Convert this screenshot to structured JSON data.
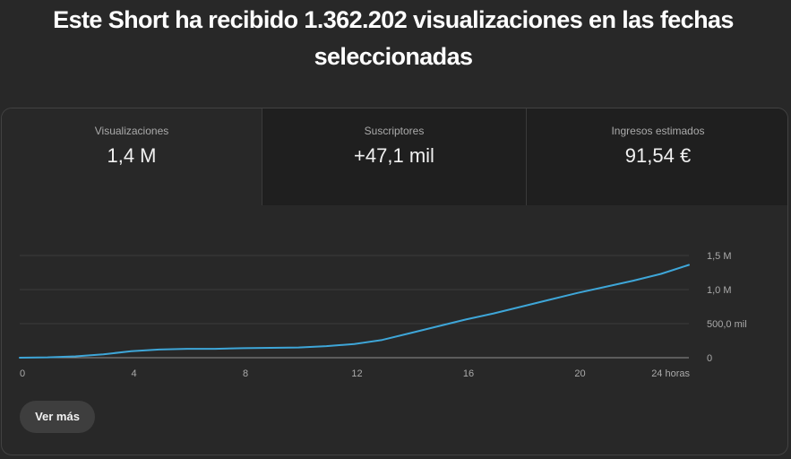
{
  "headline": "Este Short ha recibido 1.362.202 visualizaciones en las fechas seleccionadas",
  "metrics": [
    {
      "label": "Visualizaciones",
      "value": "1,4 M"
    },
    {
      "label": "Suscriptores",
      "value": "+47,1 mil"
    },
    {
      "label": "Ingresos estimados",
      "value": "91,54 €"
    }
  ],
  "colors": {
    "line": "#3ea6d8",
    "grid": "#3d3d3d",
    "baseline": "#909090"
  },
  "chart_data": {
    "type": "line",
    "series": [
      {
        "x": [
          0,
          1,
          2,
          3,
          4,
          5,
          6,
          7,
          8,
          9,
          10,
          11,
          12,
          13,
          14,
          15,
          16,
          17,
          18,
          19,
          20,
          21,
          22,
          23,
          24
        ],
        "values": [
          0,
          5000,
          20000,
          50000,
          95000,
          120000,
          130000,
          130000,
          140000,
          145000,
          150000,
          170000,
          200000,
          260000,
          360000,
          460000,
          560000,
          650000,
          750000,
          850000,
          950000,
          1040000,
          1130000,
          1230000,
          1362202
        ]
      }
    ],
    "xticks": [
      "0",
      "4",
      "8",
      "12",
      "16",
      "20",
      "24 horas"
    ],
    "xtick_values": [
      0,
      4,
      8,
      12,
      16,
      20,
      24
    ],
    "yticks": [
      "0",
      "500,0 mil",
      "1,0 M",
      "1,5 M"
    ],
    "ytick_values": [
      0,
      500000,
      1000000,
      1500000
    ],
    "xlim": [
      0,
      24
    ],
    "ylim": [
      0,
      1500000
    ],
    "grid": true,
    "title": "",
    "xlabel": "",
    "ylabel": ""
  },
  "actions": {
    "more_label": "Ver más"
  }
}
